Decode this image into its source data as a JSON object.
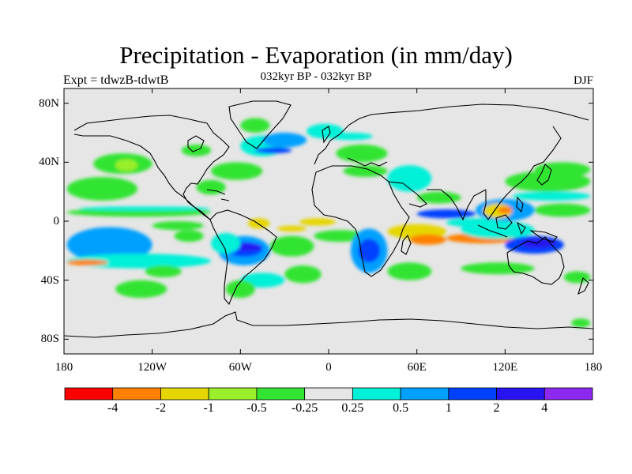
{
  "title": "Precipitation - Evaporation (in mm/day)",
  "subtitle": "032kyr BP - 032kyr BP",
  "left_label": "Expt = tdwzB-tdwtB",
  "right_label": "DJF",
  "chart_data": {
    "type": "heatmap",
    "projection": "cylindrical-equidistant",
    "xlim": [
      -180,
      180
    ],
    "ylim": [
      -90,
      90
    ],
    "x_ticks": [
      {
        "value": -180,
        "label": "180"
      },
      {
        "value": -120,
        "label": "120W"
      },
      {
        "value": -60,
        "label": "60W"
      },
      {
        "value": 0,
        "label": "0"
      },
      {
        "value": 60,
        "label": "60E"
      },
      {
        "value": 120,
        "label": "120E"
      },
      {
        "value": 180,
        "label": "180"
      }
    ],
    "y_ticks": [
      {
        "value": 80,
        "label": "80N"
      },
      {
        "value": 40,
        "label": "40N"
      },
      {
        "value": 0,
        "label": "0"
      },
      {
        "value": -40,
        "label": "40S"
      },
      {
        "value": -80,
        "label": "80S"
      }
    ],
    "background_color": "#e6e6e6",
    "colorbar": {
      "colors": [
        "#ff0000",
        "#ff8000",
        "#e6d600",
        "#9bef2a",
        "#32e432",
        "#e6e6e6",
        "#00f0d8",
        "#00a0ff",
        "#0040ff",
        "#2814f0",
        "#8c28f0"
      ],
      "labels": [
        "-4",
        "-2",
        "-1",
        "-0.5",
        "-0.25",
        "0.25",
        "0.5",
        "1",
        "2",
        "4"
      ]
    },
    "fields": [
      {
        "lon": [
          -178,
          -135
        ],
        "lat": [
          -23,
          -8
        ],
        "level": 8
      },
      {
        "lon": [
          -178,
          -145
        ],
        "lat": [
          -20,
          -11
        ],
        "level": 9
      },
      {
        "lon": [
          -178,
          -120
        ],
        "lat": [
          -28,
          -4
        ],
        "level": 7
      },
      {
        "lon": [
          -178,
          -80
        ],
        "lat": [
          -32,
          -22
        ],
        "level": 6
      },
      {
        "lon": [
          -178,
          -80
        ],
        "lat": [
          3,
          9
        ],
        "level": 4
      },
      {
        "lon": [
          -170,
          -80
        ],
        "lat": [
          7,
          10
        ],
        "level": 6
      },
      {
        "lon": [
          -120,
          -85
        ],
        "lat": [
          -6,
          0
        ],
        "level": 4
      },
      {
        "lon": [
          -178,
          -130
        ],
        "lat": [
          14,
          30
        ],
        "level": 4
      },
      {
        "lon": [
          -160,
          -120
        ],
        "lat": [
          32,
          46
        ],
        "level": 4
      },
      {
        "lon": [
          -145,
          -130
        ],
        "lat": [
          34,
          42
        ],
        "level": 3
      },
      {
        "lon": [
          -145,
          -110
        ],
        "lat": [
          -52,
          -40
        ],
        "level": 4
      },
      {
        "lon": [
          -125,
          -100
        ],
        "lat": [
          -38,
          -30
        ],
        "level": 4
      },
      {
        "lon": [
          -105,
          -85
        ],
        "lat": [
          -14,
          -6
        ],
        "level": 4
      },
      {
        "lon": [
          -75,
          -40
        ],
        "lat": [
          -30,
          -10
        ],
        "level": 7
      },
      {
        "lon": [
          -70,
          -45
        ],
        "lat": [
          -24,
          -14
        ],
        "level": 8
      },
      {
        "lon": [
          -65,
          -45
        ],
        "lat": [
          -20,
          -15
        ],
        "level": 9
      },
      {
        "lon": [
          -80,
          -60
        ],
        "lat": [
          -22,
          -8
        ],
        "level": 6
      },
      {
        "lon": [
          -55,
          -40
        ],
        "lat": [
          -5,
          2
        ],
        "level": 2
      },
      {
        "lon": [
          -40,
          -10
        ],
        "lat": [
          -24,
          -10
        ],
        "level": 4
      },
      {
        "lon": [
          -35,
          -15
        ],
        "lat": [
          -7,
          -3
        ],
        "level": 2
      },
      {
        "lon": [
          -30,
          -5
        ],
        "lat": [
          -42,
          -30
        ],
        "level": 4
      },
      {
        "lon": [
          -60,
          -30
        ],
        "lat": [
          -45,
          -35
        ],
        "level": 6
      },
      {
        "lon": [
          -70,
          -50
        ],
        "lat": [
          -52,
          -40
        ],
        "level": 4
      },
      {
        "lon": [
          -90,
          -70
        ],
        "lat": [
          18,
          28
        ],
        "level": 4
      },
      {
        "lon": [
          -80,
          -45
        ],
        "lat": [
          28,
          40
        ],
        "level": 4
      },
      {
        "lon": [
          -60,
          -30
        ],
        "lat": [
          44,
          58
        ],
        "level": 6
      },
      {
        "lon": [
          -45,
          -15
        ],
        "lat": [
          50,
          60
        ],
        "level": 7
      },
      {
        "lon": [
          -60,
          -40
        ],
        "lat": [
          60,
          70
        ],
        "level": 4
      },
      {
        "lon": [
          -100,
          -80
        ],
        "lat": [
          44,
          52
        ],
        "level": 4
      },
      {
        "lon": [
          -50,
          -25
        ],
        "lat": [
          46,
          50
        ],
        "level": 8
      },
      {
        "lon": [
          -15,
          10
        ],
        "lat": [
          56,
          66
        ],
        "level": 6
      },
      {
        "lon": [
          -20,
          5
        ],
        "lat": [
          -3,
          2
        ],
        "level": 2
      },
      {
        "lon": [
          -10,
          25
        ],
        "lat": [
          -14,
          -6
        ],
        "level": 4
      },
      {
        "lon": [
          15,
          40
        ],
        "lat": [
          -35,
          -5
        ],
        "level": 7
      },
      {
        "lon": [
          20,
          35
        ],
        "lat": [
          -28,
          -12
        ],
        "level": 8
      },
      {
        "lon": [
          40,
          80
        ],
        "lat": [
          -12,
          -2
        ],
        "level": 2
      },
      {
        "lon": [
          55,
          80
        ],
        "lat": [
          -16,
          -9
        ],
        "level": 1
      },
      {
        "lon": [
          80,
          130
        ],
        "lat": [
          -15,
          -8
        ],
        "level": 1
      },
      {
        "lon": [
          90,
          140
        ],
        "lat": [
          -12,
          0
        ],
        "level": 6
      },
      {
        "lon": [
          120,
          160
        ],
        "lat": [
          -22,
          -10
        ],
        "level": 8
      },
      {
        "lon": [
          130,
          155
        ],
        "lat": [
          -18,
          -12
        ],
        "level": 9
      },
      {
        "lon": [
          60,
          100
        ],
        "lat": [
          2,
          8
        ],
        "level": 8
      },
      {
        "lon": [
          80,
          120
        ],
        "lat": [
          -4,
          2
        ],
        "level": 6
      },
      {
        "lon": [
          100,
          140
        ],
        "lat": [
          0,
          15
        ],
        "level": 7
      },
      {
        "lon": [
          105,
          125
        ],
        "lat": [
          2,
          12
        ],
        "level": 2
      },
      {
        "lon": [
          115,
          125
        ],
        "lat": [
          5,
          10
        ],
        "level": 1
      },
      {
        "lon": [
          140,
          178
        ],
        "lat": [
          3,
          12
        ],
        "level": 4
      },
      {
        "lon": [
          125,
          178
        ],
        "lat": [
          14,
          20
        ],
        "level": 6
      },
      {
        "lon": [
          120,
          178
        ],
        "lat": [
          20,
          34
        ],
        "level": 4
      },
      {
        "lon": [
          140,
          178
        ],
        "lat": [
          30,
          40
        ],
        "level": 4
      },
      {
        "lon": [
          60,
          90
        ],
        "lat": [
          12,
          20
        ],
        "level": 4
      },
      {
        "lon": [
          40,
          70
        ],
        "lat": [
          20,
          38
        ],
        "level": 6
      },
      {
        "lon": [
          10,
          40
        ],
        "lat": [
          30,
          38
        ],
        "level": 4
      },
      {
        "lon": [
          5,
          40
        ],
        "lat": [
          40,
          52
        ],
        "level": 4
      },
      {
        "lon": [
          0,
          30
        ],
        "lat": [
          55,
          60
        ],
        "level": 6
      },
      {
        "lon": [
          40,
          70
        ],
        "lat": [
          -40,
          -28
        ],
        "level": 4
      },
      {
        "lon": [
          90,
          140
        ],
        "lat": [
          -36,
          -28
        ],
        "level": 4
      },
      {
        "lon": [
          160,
          178
        ],
        "lat": [
          -42,
          -34
        ],
        "level": 4
      },
      {
        "lon": [
          165,
          178
        ],
        "lat": [
          -72,
          -66
        ],
        "level": 4
      },
      {
        "lon": [
          -178,
          -150
        ],
        "lat": [
          -30,
          -26
        ],
        "level": 1
      }
    ]
  }
}
